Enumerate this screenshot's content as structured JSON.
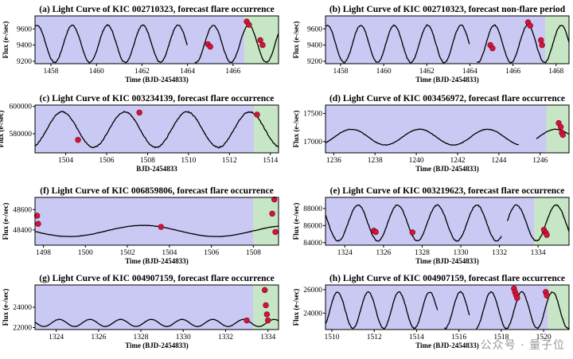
{
  "figure": {
    "panel_fill": "#c9c9f3",
    "forecast_fill": "#c6e6c6",
    "curve_color": "#000000",
    "flare_color": "#d3143a",
    "watermark": "公众号 · 量子位"
  },
  "chart_data": [
    {
      "type": "line",
      "id": "a",
      "title": "(a) Light Curve of KIC 002710323, forecast flare occurrence",
      "xlabel": "Time (BJD-2454833)",
      "ylabel": "Flux (e-/sec)",
      "xlim": [
        1457.3,
        1468.0
      ],
      "ylim": [
        9170,
        9760
      ],
      "xticks": [
        1458,
        1460,
        1462,
        1464,
        1466
      ],
      "yticks": [
        9200,
        9400,
        9600
      ],
      "forecast_start": 1466.5,
      "curve": {
        "kind": "sin",
        "base": 9415,
        "amp": 230,
        "period": 1.55,
        "phase": 0.0,
        "drift": 0
      },
      "gaps": [
        [
          1464.0,
          1464.3
        ]
      ],
      "flares": [
        [
          1464.9,
          9410
        ],
        [
          1465.0,
          9380
        ],
        [
          1466.6,
          9690
        ],
        [
          1466.7,
          9650
        ],
        [
          1467.2,
          9460
        ],
        [
          1467.3,
          9400
        ]
      ]
    },
    {
      "type": "line",
      "id": "b",
      "title": "(b) Light Curve of KIC 002710323, forecast non-flare period",
      "xlabel": "Time (BJD-2454833)",
      "ylabel": "Flux (e-/sec)",
      "xlim": [
        1457.3,
        1468.6
      ],
      "ylim": [
        9170,
        9760
      ],
      "xticks": [
        1458,
        1460,
        1462,
        1464,
        1466,
        1468
      ],
      "yticks": [
        9200,
        9400,
        9600
      ],
      "forecast_start": 1467.5,
      "curve": {
        "kind": "sin",
        "base": 9415,
        "amp": 230,
        "period": 1.55,
        "phase": 0.0,
        "drift": 0
      },
      "gaps": [
        [
          1464.0,
          1464.3
        ]
      ],
      "flares": [
        [
          1464.95,
          9400
        ],
        [
          1465.05,
          9360
        ],
        [
          1466.7,
          9680
        ],
        [
          1466.8,
          9640
        ],
        [
          1467.3,
          9460
        ],
        [
          1467.35,
          9400
        ]
      ]
    },
    {
      "type": "line",
      "id": "c",
      "title": "(c) Light Curve of KIC 003234139, forecast flare occurrence",
      "xlabel": "BJD-2454833",
      "ylabel": "Flux (e-/sec)",
      "xlim": [
        1502.5,
        1514.4
      ],
      "ylim": [
        566000,
        601000
      ],
      "xticks": [
        1504,
        1506,
        1508,
        1510,
        1512,
        1514
      ],
      "yticks": [
        580000,
        600000
      ],
      "forecast_start": 1513.2,
      "curve": {
        "kind": "sin",
        "base": 583000,
        "amp": 13000,
        "period": 3.05,
        "phase": 1.2,
        "drift": 0
      },
      "gaps": [],
      "flares": [
        [
          1504.6,
          575500
        ],
        [
          1507.6,
          595500
        ],
        [
          1513.35,
          594000
        ]
      ]
    },
    {
      "type": "line",
      "id": "d",
      "title": "(d) Light Curve of KIC 003456972, forecast flare occurrence",
      "xlabel": "Time (BJD-2454833)",
      "ylabel": "Flux (e-/sec)",
      "xlim": [
        1235.6,
        1247.4
      ],
      "ylim": [
        16800,
        17650
      ],
      "xticks": [
        1236,
        1238,
        1240,
        1242,
        1244,
        1246
      ],
      "yticks": [
        17000,
        17500
      ],
      "forecast_start": 1246.3,
      "curve": {
        "kind": "sin",
        "base": 17080,
        "amp": 140,
        "period": 3.3,
        "phase": 2.8,
        "drift": 0
      },
      "gaps": [
        [
          1245.0,
          1245.8
        ]
      ],
      "flares": [
        [
          1246.9,
          17330
        ],
        [
          1247.0,
          17260
        ],
        [
          1247.05,
          17160
        ],
        [
          1247.1,
          17120
        ]
      ]
    },
    {
      "type": "line",
      "id": "f",
      "title": "(f) Light Curve of KIC 006859806, forecast flare occurrence",
      "xlabel": "Time (BJD-2454833)",
      "ylabel": "Flux (e-/sec)",
      "xlim": [
        1497.6,
        1509.2
      ],
      "ylim": [
        48250,
        48720
      ],
      "xticks": [
        1498,
        1500,
        1502,
        1504,
        1506,
        1508
      ],
      "yticks": [
        48400,
        48600
      ],
      "forecast_start": 1508.0,
      "curve": {
        "kind": "sin",
        "base": 48390,
        "amp": 55,
        "period": 7.0,
        "phase": 3.6,
        "drift": 0
      },
      "gaps": [],
      "flares": [
        [
          1497.7,
          48540
        ],
        [
          1497.75,
          48460
        ],
        [
          1503.6,
          48430
        ],
        [
          1508.9,
          48560
        ],
        [
          1509.0,
          48700
        ],
        [
          1509.05,
          48380
        ]
      ]
    },
    {
      "type": "line",
      "id": "e",
      "title": "(e) Light Curve of KIC 003219623, forecast flare occurrence",
      "xlabel": "Time (BJD-2454833)",
      "ylabel": "Flux (e-/sec)",
      "xlim": [
        1323.0,
        1335.6
      ],
      "ylim": [
        83700,
        89300
      ],
      "xticks": [
        1324,
        1326,
        1328,
        1330,
        1332,
        1334
      ],
      "yticks": [
        84000,
        86000,
        88000
      ],
      "forecast_start": 1333.8,
      "curve": {
        "kind": "sin",
        "base": 86300,
        "amp": 2100,
        "period": 2.05,
        "phase": 0.4,
        "drift": 0
      },
      "gaps": [
        [
          1332.1,
          1332.4
        ]
      ],
      "flares": [
        [
          1325.5,
          85400
        ],
        [
          1325.6,
          85250
        ],
        [
          1327.5,
          85200
        ],
        [
          1334.3,
          85500
        ],
        [
          1334.4,
          85150
        ],
        [
          1334.45,
          84900
        ]
      ]
    },
    {
      "type": "line",
      "id": "g",
      "title": "(g) Light Curve of KIC 004907159, forecast flare occurrence",
      "xlabel": "Time (BJD-2454833)",
      "ylabel": "Flux (e-/sec)",
      "xlim": [
        1323.0,
        1334.5
      ],
      "ylim": [
        21800,
        26200
      ],
      "xticks": [
        1324,
        1326,
        1328,
        1330,
        1332,
        1334
      ],
      "yticks": [
        22000,
        24000
      ],
      "forecast_start": 1333.3,
      "curve": {
        "kind": "sin",
        "base": 22450,
        "amp": 350,
        "period": 1.45,
        "phase": 0.3,
        "drift": 0
      },
      "gaps": [],
      "flares": [
        [
          1333.0,
          22700
        ],
        [
          1333.85,
          25700
        ],
        [
          1333.9,
          24200
        ],
        [
          1333.95,
          23300
        ],
        [
          1334.0,
          22700
        ]
      ]
    },
    {
      "type": "line",
      "id": "h",
      "title": "(h) Light Curve of KIC 004907159, forecast flare occurrence",
      "xlabel": "Time (BJD-2454833)",
      "ylabel": "Flux (e-/sec)",
      "xlim": [
        1509.7,
        1521.2
      ],
      "ylim": [
        22600,
        26400
      ],
      "xticks": [
        1510,
        1512,
        1514,
        1516,
        1518,
        1520
      ],
      "yticks": [
        24000,
        26000
      ],
      "forecast_start": 1520.2,
      "curve": {
        "kind": "sin",
        "base": 24250,
        "amp": 1550,
        "period": 1.45,
        "phase": 4.3,
        "drift": 0
      },
      "gaps": [
        [
          1515.0,
          1515.3
        ],
        [
          1516.5,
          1516.8
        ]
      ],
      "flares": [
        [
          1518.6,
          26100
        ],
        [
          1518.65,
          25800
        ],
        [
          1518.7,
          25550
        ],
        [
          1518.75,
          25300
        ],
        [
          1520.1,
          25800
        ],
        [
          1520.15,
          25500
        ]
      ]
    }
  ]
}
